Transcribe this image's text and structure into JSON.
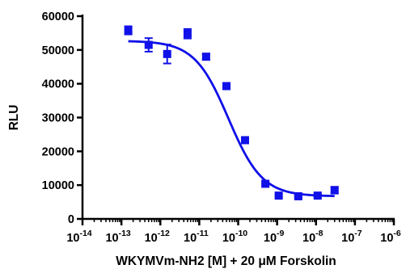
{
  "chart_data": {
    "type": "scatter",
    "xlabel": "WKYMVm-NH2 [M] + 20 μM Forskolin",
    "ylabel": "RLU",
    "x_scale": "log",
    "xlim": [
      1e-14,
      1e-06
    ],
    "ylim": [
      0,
      60000
    ],
    "grid": false,
    "legend": "none",
    "x_ticks": [
      {
        "value": 1e-14,
        "base": "10",
        "exp": "-14"
      },
      {
        "value": 1e-13,
        "base": "10",
        "exp": "-13"
      },
      {
        "value": 1e-12,
        "base": "10",
        "exp": "-12"
      },
      {
        "value": 1e-11,
        "base": "10",
        "exp": "-11"
      },
      {
        "value": 1e-10,
        "base": "10",
        "exp": "-10"
      },
      {
        "value": 1e-09,
        "base": "10",
        "exp": "-9"
      },
      {
        "value": 1e-08,
        "base": "10",
        "exp": "-8"
      },
      {
        "value": 1e-07,
        "base": "10",
        "exp": "-7"
      },
      {
        "value": 1e-06,
        "base": "10",
        "exp": "-6"
      }
    ],
    "y_ticks": [
      {
        "value": 0,
        "label": "0"
      },
      {
        "value": 10000,
        "label": "10000"
      },
      {
        "value": 20000,
        "label": "20000"
      },
      {
        "value": 30000,
        "label": "30000"
      },
      {
        "value": 40000,
        "label": "40000"
      },
      {
        "value": 50000,
        "label": "50000"
      },
      {
        "value": 60000,
        "label": "60000"
      }
    ],
    "series": [
      {
        "color": "#1010e8",
        "marker": "square",
        "points": [
          {
            "x": 1.5e-13,
            "y": 55800,
            "err": 1200
          },
          {
            "x": 5e-13,
            "y": 51500,
            "err": 2000
          },
          {
            "x": 1.5e-12,
            "y": 48800,
            "err": 2800
          },
          {
            "x": 5e-12,
            "y": 54800,
            "err": 1400
          },
          {
            "x": 1.5e-11,
            "y": 48000,
            "err": 900
          },
          {
            "x": 5e-11,
            "y": 39300,
            "err": 600
          },
          {
            "x": 1.5e-10,
            "y": 23300,
            "err": 800
          },
          {
            "x": 5e-10,
            "y": 10400,
            "err": 500
          },
          {
            "x": 1.1e-09,
            "y": 6900,
            "err": 400
          },
          {
            "x": 3.5e-09,
            "y": 6700,
            "err": 400
          },
          {
            "x": 1.1e-08,
            "y": 6900,
            "err": 400
          },
          {
            "x": 3e-08,
            "y": 8500,
            "err": 1000
          }
        ],
        "fit": {
          "bottom": 6700,
          "top": 52700,
          "log_ec50": -10.25,
          "hill": 1.0,
          "x_range": [
            1.5e-13,
            3e-08
          ]
        }
      }
    ]
  }
}
